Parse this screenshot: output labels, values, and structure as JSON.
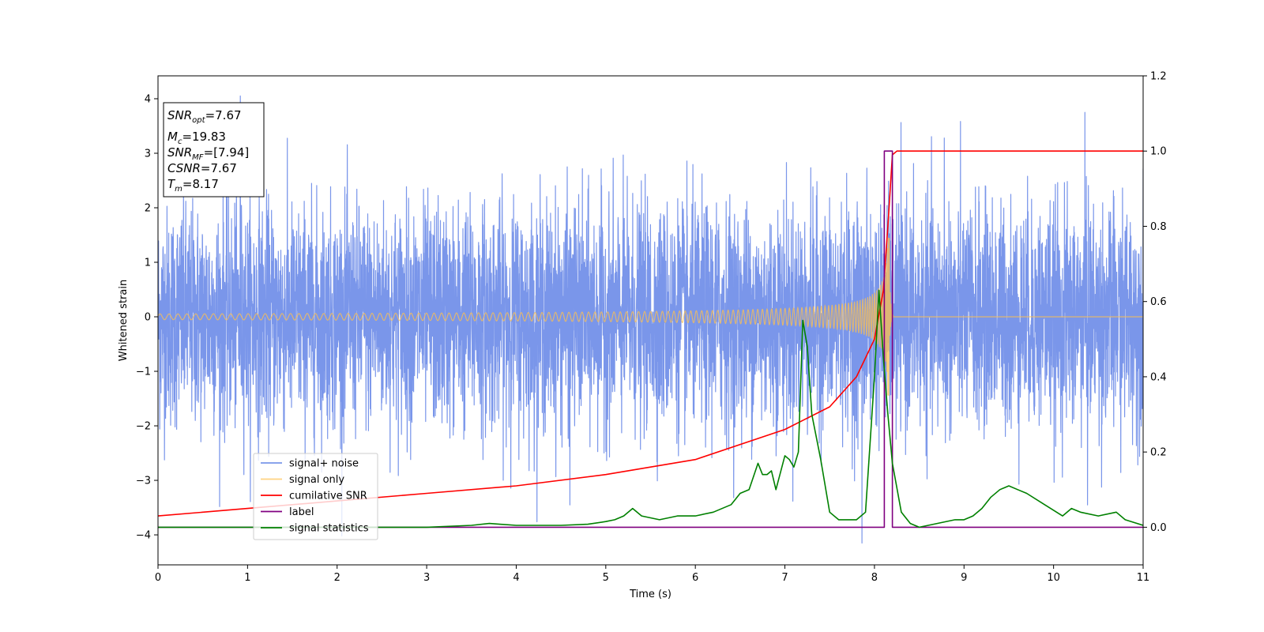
{
  "chart_data": {
    "type": "line",
    "xlabel": "Time (s)",
    "ylabel": "Whitened strain",
    "xlim": [
      0,
      11
    ],
    "ylim": [
      -4.55,
      4.42
    ],
    "y2lim": [
      -0.1,
      1.2
    ],
    "x_ticks": [
      0,
      1,
      2,
      3,
      4,
      5,
      6,
      7,
      8,
      9,
      10,
      11
    ],
    "y_ticks": [
      -4,
      -3,
      -2,
      -1,
      0,
      1,
      2,
      3,
      4
    ],
    "y2_ticks": [
      0.0,
      0.2,
      0.4,
      0.6,
      0.8,
      1.0,
      1.2
    ],
    "x_tick_labels": [
      "0",
      "1",
      "2",
      "3",
      "4",
      "5",
      "6",
      "7",
      "8",
      "9",
      "10",
      "11"
    ],
    "y_tick_labels": [
      "−4",
      "−3",
      "−2",
      "−1",
      "0",
      "1",
      "2",
      "3",
      "4"
    ],
    "y2_tick_labels": [
      "0.0",
      "0.2",
      "0.4",
      "0.6",
      "0.8",
      "1.0",
      "1.2"
    ],
    "grid": false,
    "legend_placement": "lower-left",
    "info_box": {
      "snr_opt": {
        "base": "SNR",
        "sub": "opt",
        "value": "=7.67"
      },
      "mc": {
        "base": "M",
        "sub": "c",
        "value": "=19.83"
      },
      "snr_mf": {
        "base": "SNR",
        "sub": "MF",
        "value": "=[7.94]"
      },
      "csnr": {
        "base": "CSNR",
        "sub": "",
        "value": "=7.67"
      },
      "tm": {
        "base": "T",
        "sub": "m",
        "value": "=8.17"
      }
    },
    "series": [
      {
        "name": "signal+ noise",
        "color": "#4169e1",
        "axis": "left",
        "style": "noise",
        "noise_amplitude_std": 1.0,
        "approx_range": [
          -4.15,
          4.05
        ],
        "spikes": [
          [
            0.92,
            4.05
          ],
          [
            10.35,
            3.75
          ],
          [
            8.78,
            3.28
          ],
          [
            7.86,
            -4.15
          ],
          [
            10.38,
            -3.45
          ],
          [
            4.6,
            -3.45
          ]
        ]
      },
      {
        "name": "signal only",
        "color": "#ffc04d",
        "axis": "left",
        "style": "chirp",
        "t_merge": 8.17,
        "peak_amplitude": 1.45
      },
      {
        "name": "cumilative SNR",
        "color": "#ff0000",
        "axis": "right",
        "x": [
          0,
          1,
          2,
          3,
          4,
          5,
          6,
          7,
          7.5,
          7.8,
          8.0,
          8.1,
          8.15,
          8.2,
          8.25,
          11
        ],
        "y": [
          0.03,
          0.05,
          0.07,
          0.09,
          0.11,
          0.14,
          0.18,
          0.26,
          0.32,
          0.4,
          0.5,
          0.63,
          0.8,
          0.99,
          1.0,
          1.0
        ]
      },
      {
        "name": "label",
        "color": "#800080",
        "axis": "right",
        "x": [
          0,
          8.11,
          8.11,
          8.2,
          8.2,
          11
        ],
        "y": [
          0,
          0,
          1.0,
          1.0,
          0,
          0
        ]
      },
      {
        "name": "signal statistics",
        "color": "#008000",
        "axis": "right",
        "x": [
          0,
          0.5,
          1,
          1.5,
          2,
          2.5,
          3,
          3.5,
          3.7,
          4,
          4.5,
          4.8,
          5.0,
          5.1,
          5.2,
          5.3,
          5.4,
          5.6,
          5.8,
          6.0,
          6.2,
          6.4,
          6.5,
          6.6,
          6.7,
          6.75,
          6.8,
          6.85,
          6.9,
          7.0,
          7.05,
          7.1,
          7.15,
          7.2,
          7.25,
          7.3,
          7.4,
          7.5,
          7.6,
          7.8,
          7.9,
          8.0,
          8.05,
          8.1,
          8.15,
          8.2,
          8.3,
          8.4,
          8.5,
          8.7,
          8.9,
          9.0,
          9.1,
          9.2,
          9.3,
          9.4,
          9.5,
          9.6,
          9.7,
          9.9,
          10.1,
          10.2,
          10.3,
          10.5,
          10.7,
          10.8,
          11
        ],
        "y": [
          0,
          0,
          0,
          0,
          0,
          0.0,
          0.0,
          0.005,
          0.01,
          0.005,
          0.005,
          0.008,
          0.015,
          0.02,
          0.03,
          0.05,
          0.03,
          0.02,
          0.03,
          0.03,
          0.04,
          0.06,
          0.09,
          0.1,
          0.17,
          0.14,
          0.14,
          0.15,
          0.1,
          0.19,
          0.18,
          0.16,
          0.2,
          0.55,
          0.48,
          0.3,
          0.18,
          0.04,
          0.02,
          0.02,
          0.04,
          0.4,
          0.63,
          0.45,
          0.3,
          0.17,
          0.04,
          0.01,
          0.0,
          0.01,
          0.02,
          0.02,
          0.03,
          0.05,
          0.08,
          0.1,
          0.11,
          0.1,
          0.09,
          0.06,
          0.03,
          0.05,
          0.04,
          0.03,
          0.04,
          0.02,
          0.005
        ]
      }
    ]
  }
}
